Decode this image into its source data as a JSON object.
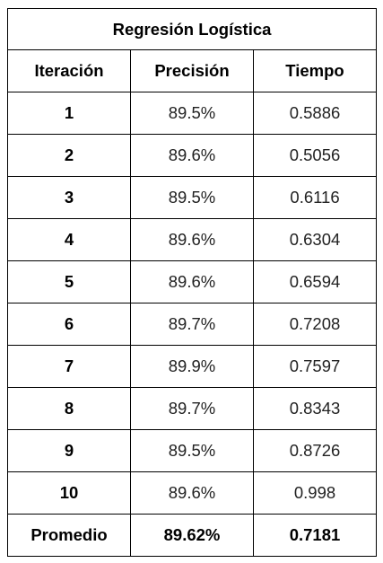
{
  "table": {
    "title": "Regresión Logística",
    "headers": [
      "Iteración",
      "Precisión",
      "Tiempo"
    ],
    "rows": [
      [
        "1",
        "89.5%",
        "0.5886"
      ],
      [
        "2",
        "89.6%",
        "0.5056"
      ],
      [
        "3",
        "89.5%",
        "0.6116"
      ],
      [
        "4",
        "89.6%",
        "0.6304"
      ],
      [
        "5",
        "89.6%",
        "0.6594"
      ],
      [
        "6",
        "89.7%",
        "0.7208"
      ],
      [
        "7",
        "89.9%",
        "0.7597"
      ],
      [
        "8",
        "89.7%",
        "0.8343"
      ],
      [
        "9",
        "89.5%",
        "0.8726"
      ],
      [
        "10",
        "89.6%",
        "0.998"
      ]
    ],
    "average": [
      "Promedio",
      "89.62%",
      "0.7181"
    ]
  }
}
